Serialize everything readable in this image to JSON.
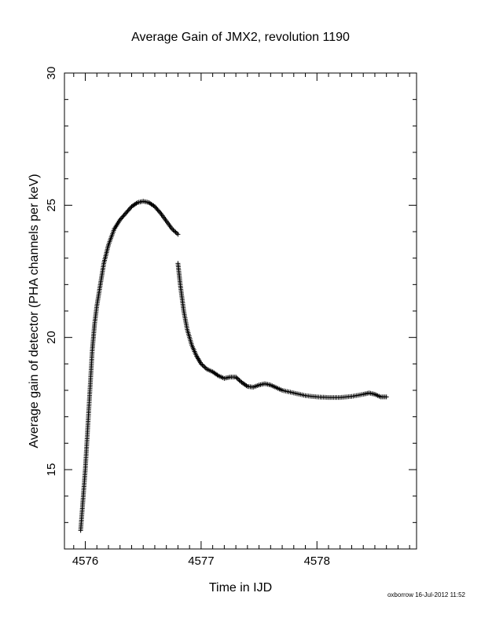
{
  "chart_data": {
    "type": "scatter",
    "title": "Average Gain of JMX2, revolution 1190",
    "xlabel": "Time in IJD",
    "ylabel": "Average gain of detector (PHA channels per keV)",
    "xlim": [
      4575.82,
      4578.86
    ],
    "ylim": [
      12.0,
      30.0
    ],
    "xticks": [
      "4576",
      "4577",
      "4578"
    ],
    "xtick_values": [
      4576,
      4577,
      4578
    ],
    "yticks": [
      "15",
      "20",
      "25",
      "30"
    ],
    "ytick_values": [
      15,
      20,
      25,
      30
    ],
    "grid": false,
    "marker": "plus",
    "marker_color": "#000000",
    "series": [
      {
        "x": [
          4575.96,
          4576.0,
          4576.04,
          4576.06,
          4576.08,
          4576.1,
          4576.13,
          4576.16,
          4576.2,
          4576.25,
          4576.3,
          4576.35,
          4576.4,
          4576.45,
          4576.5,
          4576.55,
          4576.6,
          4576.65,
          4576.7,
          4576.75,
          4576.8
        ],
        "y": [
          12.7,
          15.0,
          18.0,
          19.5,
          20.5,
          21.2,
          22.0,
          22.8,
          23.5,
          24.1,
          24.45,
          24.7,
          24.95,
          25.1,
          25.15,
          25.1,
          24.95,
          24.7,
          24.4,
          24.1,
          23.9
        ]
      },
      {
        "x": [
          4576.8,
          4576.82,
          4576.85,
          4576.88,
          4576.92,
          4576.96,
          4577.0,
          4577.05,
          4577.1,
          4577.15,
          4577.2,
          4577.25,
          4577.3,
          4577.35,
          4577.4,
          4577.45,
          4577.5,
          4577.55,
          4577.6,
          4577.65,
          4577.7,
          4577.8,
          4577.9,
          4578.0,
          4578.1,
          4578.2,
          4578.3,
          4578.4,
          4578.45,
          4578.5,
          4578.55,
          4578.6
        ],
        "y": [
          22.8,
          22.0,
          21.0,
          20.3,
          19.7,
          19.3,
          19.0,
          18.8,
          18.7,
          18.55,
          18.45,
          18.5,
          18.5,
          18.3,
          18.15,
          18.12,
          18.2,
          18.25,
          18.2,
          18.1,
          18.0,
          17.9,
          17.8,
          17.75,
          17.73,
          17.73,
          17.77,
          17.85,
          17.9,
          17.85,
          17.75,
          17.75
        ]
      }
    ]
  },
  "footer_note": "oxborrow 16-Jul-2012 11:52"
}
